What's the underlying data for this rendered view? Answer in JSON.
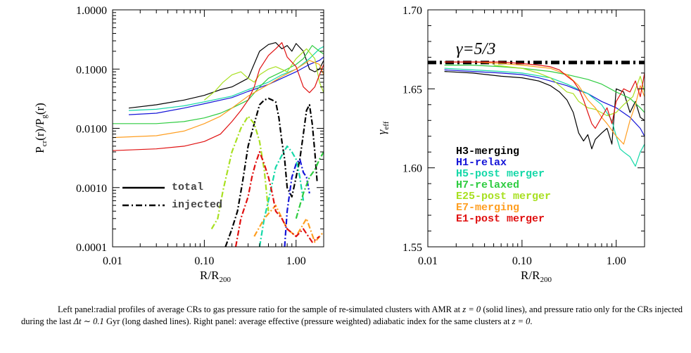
{
  "chart_data": [
    {
      "type": "line",
      "panel": "left",
      "xlabel": "R/R",
      "xlabel_sub": "200",
      "ylabel": "P",
      "ylabel_sub": "cr",
      "ylabel_mid": "(r)/P",
      "ylabel_sub2": "g",
      "ylabel_end": "(r)",
      "xscale": "log",
      "yscale": "log",
      "xlim": [
        0.01,
        2.0
      ],
      "ylim": [
        0.0001,
        1.0
      ],
      "xticks": [
        0.01,
        0.1,
        1.0
      ],
      "xtick_labels": [
        "0.01",
        "0.10",
        "1.00"
      ],
      "yticks": [
        0.0001,
        0.001,
        0.01,
        0.1,
        1.0
      ],
      "ytick_labels": [
        "0.0001",
        "0.0010",
        "0.0100",
        "0.1000",
        "1.0000"
      ],
      "legend": [
        {
          "label": "total",
          "style": "solid"
        },
        {
          "label": "injected",
          "style": "dashdot"
        }
      ],
      "series": [
        {
          "color": "#000000",
          "style": "solid",
          "x": [
            0.015,
            0.03,
            0.06,
            0.1,
            0.15,
            0.2,
            0.3,
            0.4,
            0.5,
            0.6,
            0.7,
            0.8,
            0.9,
            1.0,
            1.2,
            1.4,
            1.6,
            1.8,
            2.0
          ],
          "y": [
            0.022,
            0.025,
            0.03,
            0.036,
            0.045,
            0.05,
            0.07,
            0.2,
            0.26,
            0.28,
            0.22,
            0.25,
            0.2,
            0.27,
            0.2,
            0.1,
            0.09,
            0.1,
            0.14
          ]
        },
        {
          "color": "#1515d8",
          "style": "solid",
          "x": [
            0.015,
            0.03,
            0.06,
            0.1,
            0.2,
            0.3,
            0.5,
            0.7,
            1.0,
            1.4,
            1.8,
            2.0
          ],
          "y": [
            0.017,
            0.018,
            0.022,
            0.026,
            0.033,
            0.042,
            0.055,
            0.07,
            0.09,
            0.12,
            0.14,
            0.16
          ]
        },
        {
          "color": "#15d8a8",
          "style": "solid",
          "x": [
            0.015,
            0.03,
            0.06,
            0.1,
            0.2,
            0.3,
            0.5,
            0.7,
            1.0,
            1.4,
            1.8,
            2.0
          ],
          "y": [
            0.02,
            0.021,
            0.024,
            0.028,
            0.035,
            0.045,
            0.06,
            0.08,
            0.1,
            0.15,
            0.22,
            0.24
          ]
        },
        {
          "color": "#2ecc40",
          "style": "solid",
          "x": [
            0.01,
            0.03,
            0.06,
            0.1,
            0.15,
            0.2,
            0.3,
            0.4,
            0.5,
            0.7,
            1.0,
            1.2,
            1.5,
            1.8,
            2.0
          ],
          "y": [
            0.012,
            0.012,
            0.013,
            0.015,
            0.018,
            0.022,
            0.03,
            0.05,
            0.07,
            0.09,
            0.12,
            0.15,
            0.25,
            0.2,
            0.18
          ]
        },
        {
          "color": "#a8e020",
          "style": "solid",
          "x": [
            0.1,
            0.13,
            0.16,
            0.2,
            0.25,
            0.3,
            0.35,
            0.4,
            0.5,
            0.6,
            0.8,
            1.0,
            1.3,
            1.6,
            1.8,
            2.0
          ],
          "y": [
            0.03,
            0.042,
            0.06,
            0.08,
            0.09,
            0.07,
            0.06,
            0.08,
            0.1,
            0.11,
            0.09,
            0.15,
            0.22,
            0.15,
            0.06,
            0.04
          ]
        },
        {
          "color": "#ff9e20",
          "style": "solid",
          "x": [
            0.01,
            0.03,
            0.06,
            0.1,
            0.15,
            0.2,
            0.3,
            0.5,
            0.7,
            1.0,
            1.4,
            1.8,
            2.0
          ],
          "y": [
            0.007,
            0.0075,
            0.009,
            0.012,
            0.016,
            0.022,
            0.035,
            0.055,
            0.075,
            0.1,
            0.14,
            0.12,
            0.08
          ]
        },
        {
          "color": "#e01010",
          "style": "solid",
          "x": [
            0.01,
            0.03,
            0.06,
            0.1,
            0.15,
            0.2,
            0.25,
            0.3,
            0.35,
            0.4,
            0.5,
            0.6,
            0.7,
            0.8,
            1.0,
            1.2,
            1.4,
            1.6,
            1.8,
            2.0
          ],
          "y": [
            0.0042,
            0.0045,
            0.005,
            0.006,
            0.008,
            0.013,
            0.02,
            0.03,
            0.05,
            0.1,
            0.17,
            0.22,
            0.28,
            0.16,
            0.11,
            0.05,
            0.04,
            0.05,
            0.08,
            0.12
          ]
        },
        {
          "color": "#000000",
          "style": "dashdot",
          "x": [
            0.17,
            0.2,
            0.23,
            0.26,
            0.3,
            0.35,
            0.4,
            0.45,
            0.5,
            0.55,
            0.6,
            0.65,
            0.7,
            0.75,
            0.8,
            0.9,
            1.0,
            1.1,
            1.2,
            1.3,
            1.4,
            1.5,
            1.6,
            1.7
          ],
          "y": [
            0.0001,
            0.0002,
            0.0004,
            0.0012,
            0.005,
            0.012,
            0.025,
            0.03,
            0.032,
            0.03,
            0.028,
            0.015,
            0.006,
            0.003,
            0.001,
            0.0007,
            0.0015,
            0.003,
            0.008,
            0.02,
            0.025,
            0.012,
            0.004,
            0.0012
          ]
        },
        {
          "color": "#1515d8",
          "style": "dashdot",
          "x": [
            0.75,
            0.8,
            0.9,
            1.0,
            1.1,
            1.2,
            1.3,
            1.4
          ],
          "y": [
            0.0001,
            0.0004,
            0.0015,
            0.0025,
            0.003,
            0.0018,
            0.0015,
            0.0008
          ]
        },
        {
          "color": "#15d8a8",
          "style": "dashdot",
          "x": [
            0.4,
            0.45,
            0.5,
            0.6,
            0.7,
            0.8,
            0.9,
            1.0,
            1.1,
            1.2
          ],
          "y": [
            0.0001,
            0.0003,
            0.0006,
            0.0022,
            0.0035,
            0.005,
            0.004,
            0.003,
            0.0015,
            0.0006
          ]
        },
        {
          "color": "#2ecc40",
          "style": "dashdot",
          "x": [
            1.0,
            1.2,
            1.4,
            1.6,
            1.8,
            2.0
          ],
          "y": [
            0.0003,
            0.0008,
            0.0015,
            0.002,
            0.003,
            0.004
          ]
        },
        {
          "color": "#a8e020",
          "style": "dashdot",
          "x": [
            0.12,
            0.14,
            0.16,
            0.2,
            0.25,
            0.3,
            0.35,
            0.4,
            0.45,
            0.5
          ],
          "y": [
            0.0002,
            0.0003,
            0.0009,
            0.004,
            0.01,
            0.016,
            0.012,
            0.006,
            0.002,
            0.0004
          ]
        },
        {
          "color": "#ff9e20",
          "style": "dashdot",
          "x": [
            0.35,
            0.45,
            0.6,
            0.8,
            1.0,
            1.3,
            1.6,
            2.0
          ],
          "y": [
            0.00015,
            0.0003,
            0.0005,
            0.0002,
            0.00015,
            0.0003,
            0.00012,
            0.00018
          ]
        },
        {
          "color": "#e01010",
          "style": "dashdot",
          "x": [
            0.22,
            0.25,
            0.3,
            0.33,
            0.36,
            0.4,
            0.45,
            0.5,
            0.55,
            0.6,
            0.7,
            0.8,
            1.0,
            1.2,
            1.5,
            1.8
          ],
          "y": [
            0.0001,
            0.0003,
            0.0007,
            0.0015,
            0.0025,
            0.004,
            0.0025,
            0.0015,
            0.0008,
            0.0004,
            0.0003,
            0.0002,
            0.00015,
            0.0002,
            0.00012,
            0.00015
          ]
        }
      ]
    },
    {
      "type": "line",
      "panel": "right",
      "xlabel": "R/R",
      "xlabel_sub": "200",
      "ylabel": "γ",
      "ylabel_sub": "eff",
      "xscale": "log",
      "yscale": "linear",
      "xlim": [
        0.01,
        2.0
      ],
      "ylim": [
        1.55,
        1.7
      ],
      "xticks": [
        0.01,
        0.1,
        1.0
      ],
      "xtick_labels": [
        "0.01",
        "0.10",
        "1.00"
      ],
      "yticks": [
        1.55,
        1.6,
        1.65,
        1.7
      ],
      "ytick_labels": [
        "1.55",
        "1.60",
        "1.65",
        "1.70"
      ],
      "annotation": "γ=5/3",
      "reference_line": {
        "y": 1.6667,
        "style": "dashdot",
        "color": "#000000"
      },
      "legend": [
        {
          "label": "H3-merging",
          "color": "#000000"
        },
        {
          "label": "H1-relax",
          "color": "#1515d8"
        },
        {
          "label": "H5-post merger",
          "color": "#15d8a8"
        },
        {
          "label": "H7-relaxed",
          "color": "#2ecc40"
        },
        {
          "label": "E25-post merger",
          "color": "#a8e020"
        },
        {
          "label": "E7-merging",
          "color": "#ff9e20"
        },
        {
          "label": "E1-post merger",
          "color": "#e01010"
        }
      ],
      "series": [
        {
          "color": "#000000",
          "style": "solid",
          "x": [
            0.015,
            0.03,
            0.06,
            0.1,
            0.15,
            0.2,
            0.25,
            0.3,
            0.35,
            0.4,
            0.45,
            0.5,
            0.55,
            0.6,
            0.7,
            0.8,
            0.9,
            1.0,
            1.2,
            1.4,
            1.6,
            1.8,
            2.0
          ],
          "y": [
            1.661,
            1.66,
            1.658,
            1.657,
            1.655,
            1.652,
            1.648,
            1.643,
            1.635,
            1.622,
            1.617,
            1.621,
            1.612,
            1.618,
            1.622,
            1.625,
            1.615,
            1.65,
            1.648,
            1.635,
            1.642,
            1.632,
            1.63
          ]
        },
        {
          "color": "#1515d8",
          "style": "solid",
          "x": [
            0.015,
            0.03,
            0.06,
            0.1,
            0.15,
            0.2,
            0.3,
            0.4,
            0.5,
            0.7,
            1.0,
            1.4,
            1.8,
            2.0
          ],
          "y": [
            1.662,
            1.661,
            1.66,
            1.659,
            1.657,
            1.655,
            1.652,
            1.649,
            1.647,
            1.642,
            1.638,
            1.632,
            1.625,
            1.62
          ]
        },
        {
          "color": "#15d8a8",
          "style": "solid",
          "x": [
            0.015,
            0.03,
            0.06,
            0.1,
            0.2,
            0.3,
            0.5,
            0.7,
            0.9,
            1.0,
            1.1,
            1.2,
            1.4,
            1.6,
            1.8,
            2.0
          ],
          "y": [
            1.663,
            1.662,
            1.661,
            1.66,
            1.657,
            1.653,
            1.647,
            1.64,
            1.63,
            1.62,
            1.612,
            1.61,
            1.607,
            1.601,
            1.61,
            1.615
          ]
        },
        {
          "color": "#2ecc40",
          "style": "solid",
          "x": [
            0.015,
            0.03,
            0.06,
            0.1,
            0.2,
            0.3,
            0.5,
            0.7,
            1.0,
            1.4,
            1.8,
            2.0
          ],
          "y": [
            1.665,
            1.665,
            1.664,
            1.663,
            1.661,
            1.659,
            1.656,
            1.653,
            1.648,
            1.644,
            1.638,
            1.635
          ]
        },
        {
          "color": "#a8e020",
          "style": "solid",
          "x": [
            0.05,
            0.1,
            0.15,
            0.2,
            0.25,
            0.3,
            0.35,
            0.4,
            0.5,
            0.6,
            0.8,
            1.0,
            1.2,
            1.5,
            1.8,
            2.0
          ],
          "y": [
            1.665,
            1.663,
            1.66,
            1.657,
            1.652,
            1.648,
            1.647,
            1.642,
            1.638,
            1.637,
            1.633,
            1.635,
            1.64,
            1.645,
            1.658,
            1.648
          ]
        },
        {
          "color": "#ff9e20",
          "style": "solid",
          "x": [
            0.015,
            0.03,
            0.06,
            0.1,
            0.2,
            0.3,
            0.4,
            0.5,
            0.6,
            0.7,
            0.8,
            1.0,
            1.2,
            1.4,
            1.6,
            1.8,
            2.0
          ],
          "y": [
            1.667,
            1.667,
            1.666,
            1.665,
            1.663,
            1.659,
            1.652,
            1.643,
            1.638,
            1.632,
            1.628,
            1.62,
            1.615,
            1.63,
            1.64,
            1.652,
            1.645
          ]
        },
        {
          "color": "#e01010",
          "style": "solid",
          "x": [
            0.015,
            0.03,
            0.06,
            0.1,
            0.15,
            0.2,
            0.25,
            0.3,
            0.35,
            0.4,
            0.45,
            0.5,
            0.55,
            0.6,
            0.7,
            0.8,
            0.9,
            1.0,
            1.2,
            1.4,
            1.6,
            1.8,
            2.0
          ],
          "y": [
            1.667,
            1.667,
            1.667,
            1.666,
            1.665,
            1.664,
            1.662,
            1.658,
            1.655,
            1.65,
            1.643,
            1.635,
            1.628,
            1.625,
            1.632,
            1.638,
            1.628,
            1.642,
            1.65,
            1.648,
            1.655,
            1.645,
            1.66
          ]
        }
      ]
    }
  ],
  "caption": {
    "p1": "Left panel:radial profiles of average CRs to gas pressure ratio for the sample of re-simulated clusters with AMR at ",
    "m1": "z = 0",
    "p2": " (solid lines), and pressure ratio only for the CRs injected during the last ",
    "m2": "Δt ∼ 0.1",
    "p3": " Gyr (long dashed lines). Right panel: average effective (pressure weighted) adiabatic index for the same clusters at ",
    "m3": "z = 0",
    "p4": "."
  }
}
